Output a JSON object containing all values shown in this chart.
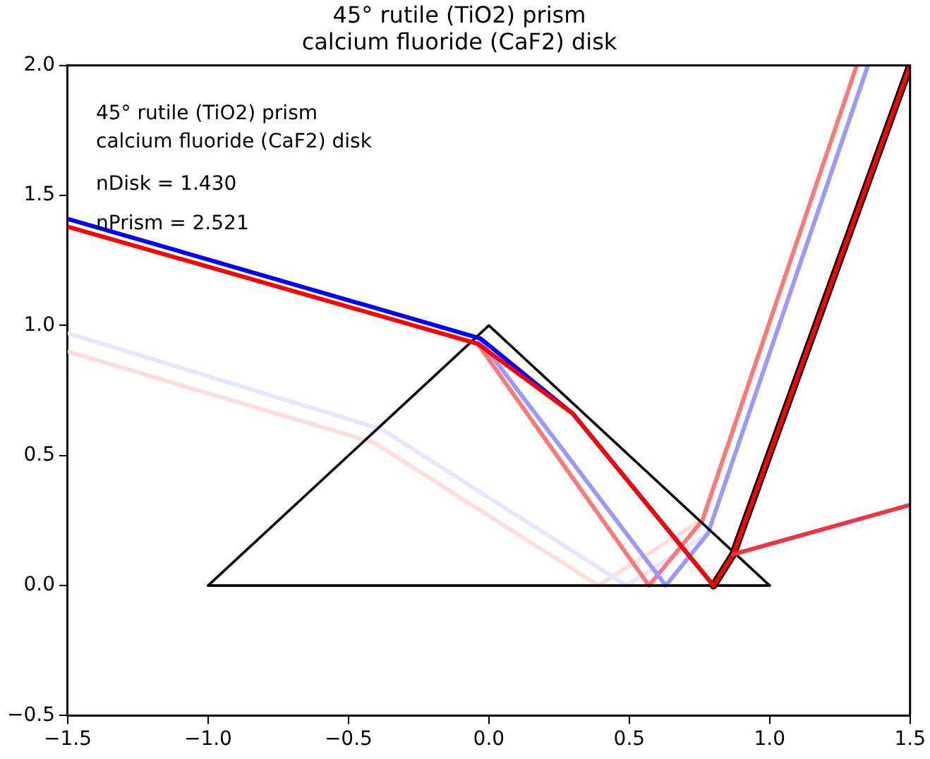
{
  "chart_data": {
    "type": "line",
    "title": "45° rutile (TiO2) prism\ncalcium fluoride (CaF2) disk",
    "annotations": [
      "45° rutile (TiO2) prism",
      "calcium fluoride (CaF2) disk",
      "nDisk = 1.430",
      "nPrism = 2.521"
    ],
    "series": [
      {
        "color": "#ffdddd",
        "x": [
          -1.5,
          -0.41,
          0.39,
          0.74
        ],
        "values": [
          0.9,
          0.55,
          0,
          0.24
        ]
      },
      {
        "color": "#e6e6ff",
        "x": [
          -1.5,
          -0.38,
          0.49,
          0.78
        ],
        "values": [
          0.97,
          0.6,
          0,
          0.2
        ]
      },
      {
        "color": "#ff7777",
        "x": [
          -0.04,
          0.57,
          0.76,
          1.31
        ],
        "values": [
          0.93,
          0,
          0.25,
          2.0
        ]
      },
      {
        "color": "#9999ff",
        "x": [
          -0.03,
          0.63,
          0.78,
          1.35
        ],
        "values": [
          0.94,
          0,
          0.2,
          2.0
        ]
      },
      {
        "color": "#000000",
        "x": [
          -1,
          0,
          1
        ],
        "values": [
          0,
          1,
          0
        ]
      },
      {
        "color": "#000000",
        "x": [
          -1,
          1
        ],
        "values": [
          0,
          0
        ]
      },
      {
        "color": "#000000",
        "x": [
          0.8,
          0.87,
          1.5
        ],
        "values": [
          0,
          0.12,
          2.0
        ]
      },
      {
        "color": "#0000ff",
        "x": [
          -1.5,
          -0.03,
          0.3,
          0.8
        ],
        "values": [
          1.41,
          0.95,
          0.66,
          0
        ]
      },
      {
        "color": "#ff0000",
        "x": [
          -1.5,
          -0.04,
          0.3,
          0.8,
          0.87,
          1.5
        ],
        "values": [
          1.38,
          0.93,
          0.66,
          0,
          0.12,
          2.0
        ]
      },
      {
        "color": "#ee3344",
        "x": [
          0.87,
          1.5
        ],
        "values": [
          0.12,
          0.31
        ]
      }
    ],
    "xlim": [
      -1.5,
      1.5
    ],
    "xticks": [
      -1.5,
      {
        "value": -1,
        "label": "−1.0"
      },
      -0.5,
      {
        "value": 0,
        "label": "0.0"
      },
      0.5,
      {
        "value": 1,
        "label": "1.0"
      },
      1.5
    ],
    "ylim": [
      -0.5,
      2.0
    ],
    "yticks": [
      -0.5,
      {
        "value": 0,
        "label": "0.0"
      },
      0.5,
      {
        "value": 1,
        "label": "1.0"
      },
      1.5,
      {
        "value": 2,
        "label": "2.0"
      }
    ],
    "grid": false,
    "legend": false,
    "marker": "none",
    "line_style": "solid"
  }
}
